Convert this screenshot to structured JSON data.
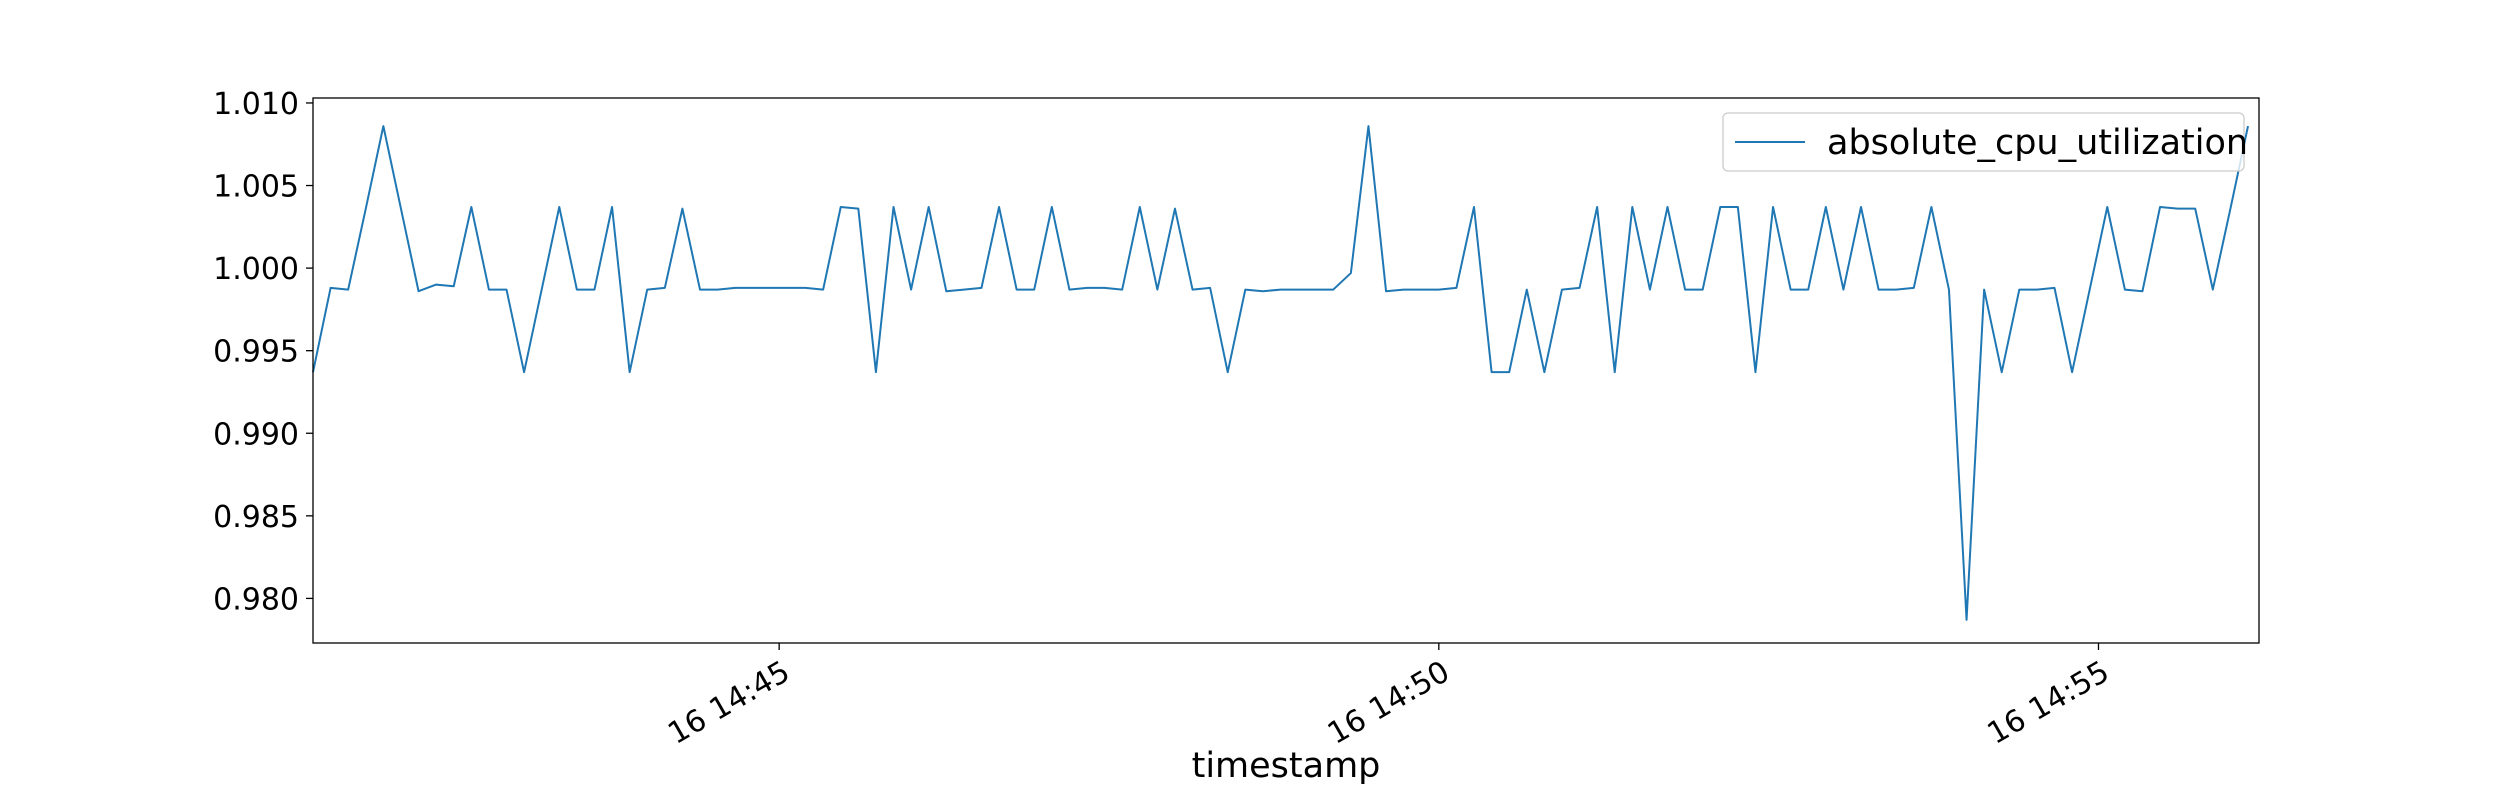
{
  "chart_data": {
    "type": "line",
    "title": "",
    "xlabel": "timestamp",
    "ylabel": "",
    "ylim": [
      0.9773,
      1.0103
    ],
    "xlim": [
      "14:41:28",
      "14:56:13"
    ],
    "x_ticks": [
      {
        "time": "14:45:00",
        "label": "16 14:45"
      },
      {
        "time": "14:50:00",
        "label": "16 14:50"
      },
      {
        "time": "14:55:00",
        "label": "16 14:55"
      }
    ],
    "y_ticks": [
      {
        "value": 1.01,
        "label": "1.010"
      },
      {
        "value": 1.005,
        "label": "1.005"
      },
      {
        "value": 1.0,
        "label": "1.000"
      },
      {
        "value": 0.995,
        "label": "0.995"
      },
      {
        "value": 0.99,
        "label": "0.990"
      },
      {
        "value": 0.985,
        "label": "0.985"
      },
      {
        "value": 0.98,
        "label": "0.980"
      }
    ],
    "grid": false,
    "legend_position": "top-right",
    "series": [
      {
        "name": "absolute_cpu_utilization",
        "color": "#1f77b4",
        "start_time": "14:41:28",
        "interval_seconds": 8,
        "values": [
          0.9937,
          0.9988,
          0.9987,
          1.0036,
          1.0086,
          1.0036,
          0.9986,
          0.999,
          0.9989,
          1.0037,
          0.9987,
          0.9987,
          0.9937,
          0.9987,
          1.0037,
          0.9987,
          0.9987,
          1.0037,
          0.9937,
          0.9987,
          0.9988,
          1.0036,
          0.9987,
          0.9987,
          0.9988,
          0.9988,
          0.9988,
          0.9988,
          0.9988,
          0.9987,
          1.0037,
          1.0036,
          0.9937,
          1.0037,
          0.9987,
          1.0037,
          0.9986,
          0.9987,
          0.9988,
          1.0037,
          0.9987,
          0.9987,
          1.0037,
          0.9987,
          0.9988,
          0.9988,
          0.9987,
          1.0037,
          0.9987,
          1.0036,
          0.9987,
          0.9988,
          0.9937,
          0.9987,
          0.9986,
          0.9987,
          0.9987,
          0.9987,
          0.9987,
          0.9997,
          1.0086,
          0.9986,
          0.9987,
          0.9987,
          0.9987,
          0.9988,
          1.0037,
          0.9937,
          0.9937,
          0.9987,
          0.9937,
          0.9987,
          0.9988,
          1.0037,
          0.9937,
          1.0037,
          0.9987,
          1.0037,
          0.9987,
          0.9987,
          1.0037,
          1.0037,
          0.9937,
          1.0037,
          0.9987,
          0.9987,
          1.0037,
          0.9987,
          1.0037,
          0.9987,
          0.9987,
          0.9988,
          1.0037,
          0.9987,
          0.9787,
          0.9987,
          0.9937,
          0.9987,
          0.9987,
          0.9988,
          0.9937,
          0.9987,
          1.0037,
          0.9987,
          0.9986,
          1.0037,
          1.0036,
          1.0036,
          0.9987,
          1.0036,
          1.0086
        ]
      }
    ]
  }
}
